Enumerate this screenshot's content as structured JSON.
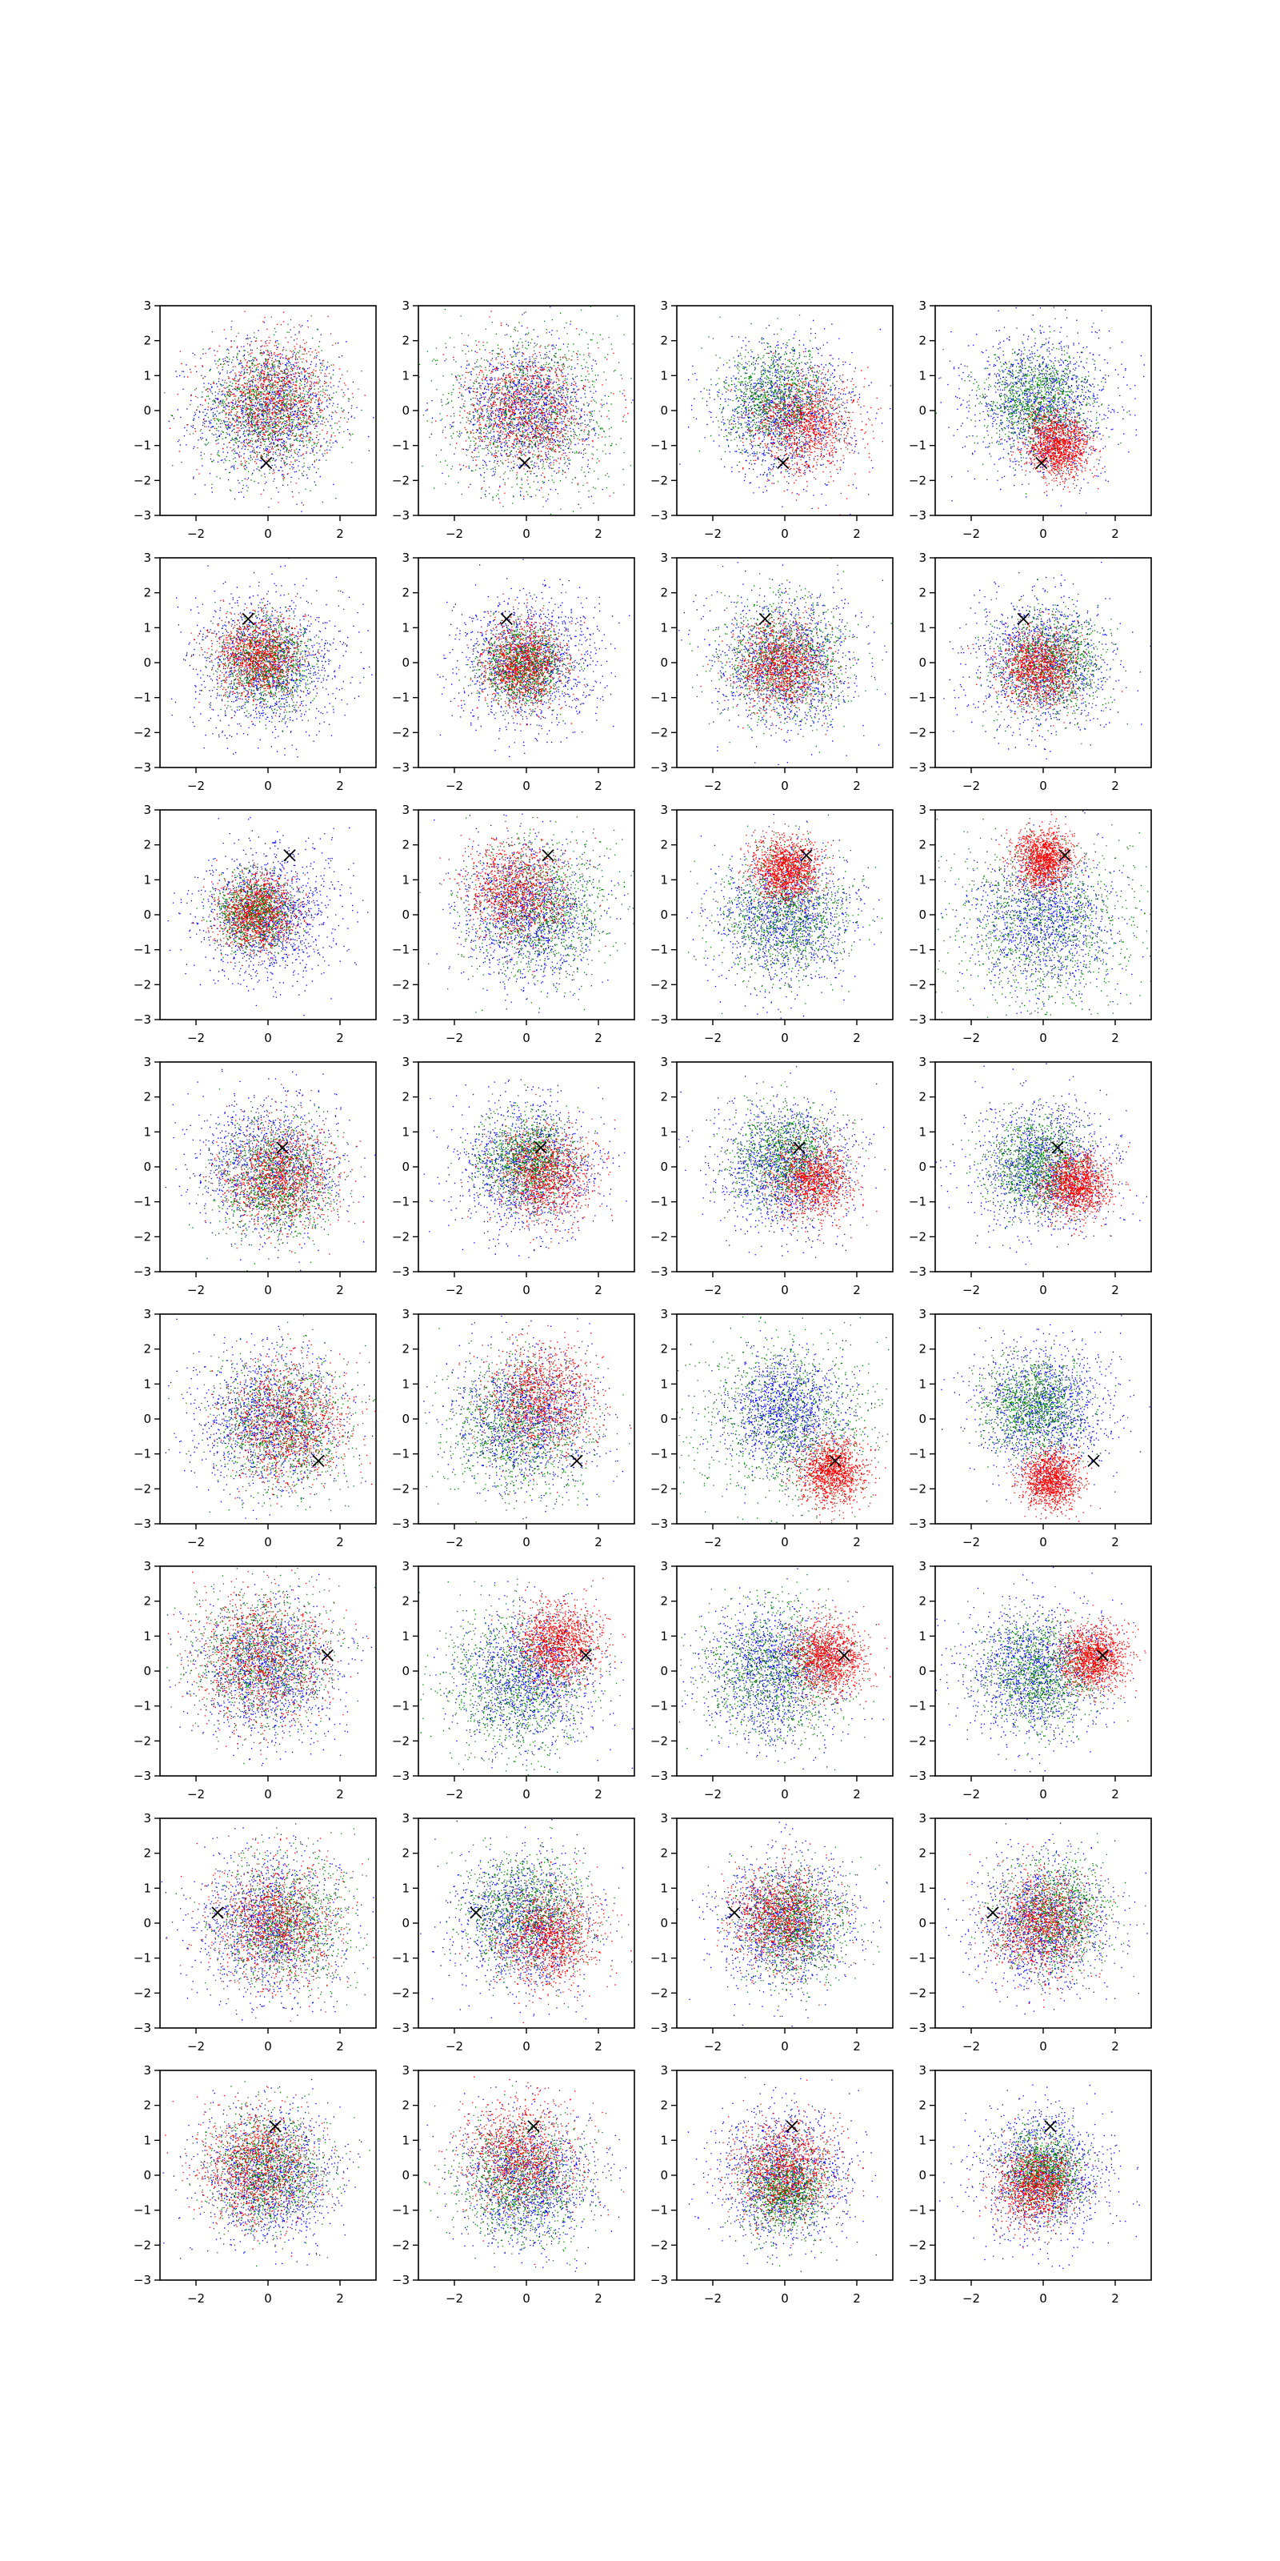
{
  "figure": {
    "rows": 8,
    "cols": 4,
    "colors": {
      "blue": "#0000ff",
      "green": "#008000",
      "red": "#ff0000",
      "marker": "#000000",
      "axes": "#000000"
    }
  },
  "chart_data": {
    "type": "scatter",
    "layout": "grid 8x4 of scatter panels",
    "xlim": [
      -3,
      3
    ],
    "ylim": [
      -3,
      3
    ],
    "x_ticks": [
      "−2",
      "0",
      "2"
    ],
    "y_ticks": [
      "−3",
      "−2",
      "−1",
      "0",
      "1",
      "2",
      "3"
    ],
    "grid": false,
    "legend": "none",
    "series_colors": [
      "blue",
      "green",
      "red"
    ],
    "marker_symbol": "x",
    "panels": [
      {
        "row": 0,
        "col": 0,
        "marker": [
          -0.05,
          -1.5
        ],
        "blue": {
          "c": [
            0,
            0
          ],
          "s": 1.0
        },
        "green": {
          "c": [
            0,
            0.1
          ],
          "s": 0.9
        },
        "red": {
          "c": [
            0.1,
            0.3
          ],
          "s": 0.85
        },
        "red_mode": "cloud"
      },
      {
        "row": 0,
        "col": 1,
        "marker": [
          -0.05,
          -1.5
        ],
        "blue": {
          "c": [
            0,
            0
          ],
          "s": 0.9
        },
        "green": {
          "c": [
            0,
            0
          ],
          "s": 1.25
        },
        "red": {
          "c": [
            0,
            0
          ],
          "s": 0.85
        },
        "red_mode": "cloud"
      },
      {
        "row": 0,
        "col": 2,
        "marker": [
          -0.05,
          -1.5
        ],
        "blue": {
          "c": [
            0,
            0
          ],
          "s": 0.95
        },
        "green": {
          "c": [
            -0.2,
            0.3
          ],
          "s": 0.75
        },
        "red": {
          "c": [
            0.6,
            -0.4
          ],
          "s": 0.7
        },
        "red_mode": "cloud"
      },
      {
        "row": 0,
        "col": 3,
        "marker": [
          -0.05,
          -1.5
        ],
        "blue": {
          "c": [
            0,
            0.2
          ],
          "s": 1.0
        },
        "green": {
          "c": [
            -0.2,
            0.2
          ],
          "s": 0.75
        },
        "red": {
          "c": [
            0.4,
            -1.0
          ],
          "s": 0.45
        },
        "red_mode": "cap",
        "red_dir": [
          0,
          -1
        ]
      },
      {
        "row": 1,
        "col": 0,
        "marker": [
          -0.55,
          1.25
        ],
        "blue": {
          "c": [
            0,
            0
          ],
          "s": 1.0
        },
        "green": {
          "c": [
            -0.1,
            0
          ],
          "s": 0.65
        },
        "red": {
          "c": [
            -0.3,
            0.2
          ],
          "s": 0.6
        },
        "red_mode": "cloud"
      },
      {
        "row": 1,
        "col": 1,
        "marker": [
          -0.55,
          1.25
        ],
        "blue": {
          "c": [
            0,
            0
          ],
          "s": 0.95
        },
        "green": {
          "c": [
            -0.1,
            -0.1
          ],
          "s": 0.55
        },
        "red": {
          "c": [
            -0.1,
            0
          ],
          "s": 0.6
        },
        "red_mode": "cloud"
      },
      {
        "row": 1,
        "col": 2,
        "marker": [
          -0.55,
          1.25
        ],
        "blue": {
          "c": [
            0,
            0
          ],
          "s": 0.95
        },
        "green": {
          "c": [
            0,
            0.1
          ],
          "s": 0.9
        },
        "red": {
          "c": [
            -0.1,
            -0.1
          ],
          "s": 0.6
        },
        "red_mode": "cloud"
      },
      {
        "row": 1,
        "col": 3,
        "marker": [
          -0.55,
          1.25
        ],
        "blue": {
          "c": [
            0,
            0
          ],
          "s": 0.95
        },
        "green": {
          "c": [
            0.2,
            0
          ],
          "s": 0.75
        },
        "red": {
          "c": [
            -0.1,
            -0.1
          ],
          "s": 0.55
        },
        "red_mode": "cloud"
      },
      {
        "row": 2,
        "col": 0,
        "marker": [
          0.6,
          1.7
        ],
        "blue": {
          "c": [
            0,
            0
          ],
          "s": 0.95
        },
        "green": {
          "c": [
            -0.4,
            0.1
          ],
          "s": 0.5
        },
        "red": {
          "c": [
            -0.3,
            0.1
          ],
          "s": 0.55
        },
        "red_mode": "cloud"
      },
      {
        "row": 2,
        "col": 1,
        "marker": [
          0.6,
          1.7
        ],
        "blue": {
          "c": [
            0,
            0
          ],
          "s": 0.95
        },
        "green": {
          "c": [
            0.4,
            0.1
          ],
          "s": 1.0
        },
        "red": {
          "c": [
            -0.3,
            0.7
          ],
          "s": 0.7
        },
        "red_mode": "cloud"
      },
      {
        "row": 2,
        "col": 2,
        "marker": [
          0.6,
          1.7
        ],
        "blue": {
          "c": [
            0,
            -0.1
          ],
          "s": 0.95
        },
        "green": {
          "c": [
            0,
            0
          ],
          "s": 0.9
        },
        "red": {
          "c": [
            0,
            1.3
          ],
          "s": 0.45
        },
        "red_mode": "cap",
        "red_dir": [
          0,
          1
        ]
      },
      {
        "row": 2,
        "col": 3,
        "marker": [
          0.6,
          1.7
        ],
        "blue": {
          "c": [
            0,
            -0.2
          ],
          "s": 0.95
        },
        "green": {
          "c": [
            0,
            -0.3
          ],
          "s": 1.3
        },
        "red": {
          "c": [
            0,
            1.6
          ],
          "s": 0.4
        },
        "red_mode": "cap",
        "red_dir": [
          0,
          1
        ]
      },
      {
        "row": 3,
        "col": 0,
        "marker": [
          0.4,
          0.55
        ],
        "blue": {
          "c": [
            0,
            0
          ],
          "s": 1.0
        },
        "green": {
          "c": [
            0.2,
            -0.4
          ],
          "s": 0.8
        },
        "red": {
          "c": [
            0.3,
            -0.3
          ],
          "s": 0.75
        },
        "red_mode": "cloud"
      },
      {
        "row": 3,
        "col": 1,
        "marker": [
          0.4,
          0.55
        ],
        "blue": {
          "c": [
            0,
            0
          ],
          "s": 0.95
        },
        "green": {
          "c": [
            0,
            0.2
          ],
          "s": 0.65
        },
        "red": {
          "c": [
            0.5,
            -0.2
          ],
          "s": 0.65
        },
        "red_mode": "cloud"
      },
      {
        "row": 3,
        "col": 2,
        "marker": [
          0.4,
          0.55
        ],
        "blue": {
          "c": [
            0,
            0
          ],
          "s": 0.95
        },
        "green": {
          "c": [
            0,
            0.3
          ],
          "s": 0.75
        },
        "red": {
          "c": [
            0.8,
            -0.4
          ],
          "s": 0.55
        },
        "red_mode": "cloud"
      },
      {
        "row": 3,
        "col": 3,
        "marker": [
          0.4,
          0.55
        ],
        "blue": {
          "c": [
            0,
            0
          ],
          "s": 0.95
        },
        "green": {
          "c": [
            -0.2,
            0.1
          ],
          "s": 0.7
        },
        "red": {
          "c": [
            0.9,
            -0.5
          ],
          "s": 0.45
        },
        "red_mode": "cap",
        "red_dir": [
          1,
          -0.6
        ]
      },
      {
        "row": 4,
        "col": 0,
        "marker": [
          1.4,
          -1.2
        ],
        "blue": {
          "c": [
            0,
            0
          ],
          "s": 1.0
        },
        "green": {
          "c": [
            0.4,
            -0.2
          ],
          "s": 0.95
        },
        "red": {
          "c": [
            0.5,
            -0.1
          ],
          "s": 0.85
        },
        "red_mode": "cloud"
      },
      {
        "row": 4,
        "col": 1,
        "marker": [
          1.4,
          -1.2
        ],
        "blue": {
          "c": [
            0,
            0
          ],
          "s": 0.95
        },
        "green": {
          "c": [
            -0.2,
            -0.2
          ],
          "s": 1.0
        },
        "red": {
          "c": [
            0.4,
            0.6
          ],
          "s": 0.75
        },
        "red_mode": "cloud"
      },
      {
        "row": 4,
        "col": 2,
        "marker": [
          1.4,
          -1.2
        ],
        "blue": {
          "c": [
            0,
            0.2
          ],
          "s": 0.8
        },
        "green": {
          "c": [
            0,
            0
          ],
          "s": 1.3
        },
        "red": {
          "c": [
            1.3,
            -1.5
          ],
          "s": 0.45
        },
        "red_mode": "cap",
        "red_dir": [
          0.6,
          -1
        ]
      },
      {
        "row": 4,
        "col": 3,
        "marker": [
          1.4,
          -1.2
        ],
        "blue": {
          "c": [
            0,
            0.3
          ],
          "s": 0.95
        },
        "green": {
          "c": [
            -0.3,
            0.4
          ],
          "s": 0.7
        },
        "red": {
          "c": [
            0.2,
            -1.7
          ],
          "s": 0.4
        },
        "red_mode": "cap",
        "red_dir": [
          0,
          -1
        ]
      },
      {
        "row": 5,
        "col": 0,
        "marker": [
          1.65,
          0.45
        ],
        "blue": {
          "c": [
            0,
            0
          ],
          "s": 1.0
        },
        "green": {
          "c": [
            -0.2,
            0.4
          ],
          "s": 0.95
        },
        "red": {
          "c": [
            -0.2,
            0.4
          ],
          "s": 0.95
        },
        "red_mode": "cloud"
      },
      {
        "row": 5,
        "col": 1,
        "marker": [
          1.65,
          0.45
        ],
        "blue": {
          "c": [
            0,
            -0.2
          ],
          "s": 0.95
        },
        "green": {
          "c": [
            -0.3,
            -0.3
          ],
          "s": 1.1
        },
        "red": {
          "c": [
            0.9,
            0.8
          ],
          "s": 0.55
        },
        "red_mode": "cap",
        "red_dir": [
          1,
          0.7
        ]
      },
      {
        "row": 5,
        "col": 2,
        "marker": [
          1.65,
          0.45
        ],
        "blue": {
          "c": [
            -0.3,
            0
          ],
          "s": 0.95
        },
        "green": {
          "c": [
            -0.3,
            0
          ],
          "s": 1.0
        },
        "red": {
          "c": [
            1.2,
            0.4
          ],
          "s": 0.5
        },
        "red_mode": "cap",
        "red_dir": [
          1,
          0.2
        ]
      },
      {
        "row": 5,
        "col": 3,
        "marker": [
          1.65,
          0.45
        ],
        "blue": {
          "c": [
            -0.2,
            0
          ],
          "s": 0.95
        },
        "green": {
          "c": [
            -0.1,
            0
          ],
          "s": 0.8
        },
        "red": {
          "c": [
            1.4,
            0.4
          ],
          "s": 0.45
        },
        "red_mode": "cap",
        "red_dir": [
          1,
          0
        ]
      },
      {
        "row": 6,
        "col": 0,
        "marker": [
          -1.4,
          0.3
        ],
        "blue": {
          "c": [
            0,
            0
          ],
          "s": 1.0
        },
        "green": {
          "c": [
            0.5,
            0
          ],
          "s": 0.9
        },
        "red": {
          "c": [
            0.2,
            0
          ],
          "s": 0.9
        },
        "red_mode": "cloud"
      },
      {
        "row": 6,
        "col": 1,
        "marker": [
          -1.4,
          0.3
        ],
        "blue": {
          "c": [
            0,
            0
          ],
          "s": 0.95
        },
        "green": {
          "c": [
            0,
            0.3
          ],
          "s": 0.85
        },
        "red": {
          "c": [
            0.6,
            -0.4
          ],
          "s": 0.7
        },
        "red_mode": "cloud"
      },
      {
        "row": 6,
        "col": 2,
        "marker": [
          -1.4,
          0.3
        ],
        "blue": {
          "c": [
            0,
            0
          ],
          "s": 0.95
        },
        "green": {
          "c": [
            0.2,
            0
          ],
          "s": 0.75
        },
        "red": {
          "c": [
            -0.1,
            0.2
          ],
          "s": 0.7
        },
        "red_mode": "cloud"
      },
      {
        "row": 6,
        "col": 3,
        "marker": [
          -1.4,
          0.3
        ],
        "blue": {
          "c": [
            0,
            0
          ],
          "s": 0.95
        },
        "green": {
          "c": [
            0.3,
            0.3
          ],
          "s": 0.8
        },
        "red": {
          "c": [
            -0.1,
            0
          ],
          "s": 0.7
        },
        "red_mode": "cloud"
      },
      {
        "row": 7,
        "col": 0,
        "marker": [
          0.2,
          1.4
        ],
        "blue": {
          "c": [
            0,
            0
          ],
          "s": 0.95
        },
        "green": {
          "c": [
            0,
            0.2
          ],
          "s": 0.8
        },
        "red": {
          "c": [
            -0.3,
            0.2
          ],
          "s": 0.8
        },
        "red_mode": "cloud"
      },
      {
        "row": 7,
        "col": 1,
        "marker": [
          0.2,
          1.4
        ],
        "blue": {
          "c": [
            0,
            -0.1
          ],
          "s": 0.95
        },
        "green": {
          "c": [
            -0.2,
            -0.2
          ],
          "s": 0.9
        },
        "red": {
          "c": [
            -0.2,
            0.6
          ],
          "s": 0.8
        },
        "red_mode": "cloud"
      },
      {
        "row": 7,
        "col": 2,
        "marker": [
          0.2,
          1.4
        ],
        "blue": {
          "c": [
            0,
            0
          ],
          "s": 0.95
        },
        "green": {
          "c": [
            0,
            -0.4
          ],
          "s": 0.6
        },
        "red": {
          "c": [
            0,
            0.2
          ],
          "s": 0.7
        },
        "red_mode": "cloud"
      },
      {
        "row": 7,
        "col": 3,
        "marker": [
          0.2,
          1.4
        ],
        "blue": {
          "c": [
            0,
            0
          ],
          "s": 0.9
        },
        "green": {
          "c": [
            0,
            0.1
          ],
          "s": 0.55
        },
        "red": {
          "c": [
            -0.2,
            -0.3
          ],
          "s": 0.55
        },
        "red_mode": "cloud"
      }
    ]
  }
}
